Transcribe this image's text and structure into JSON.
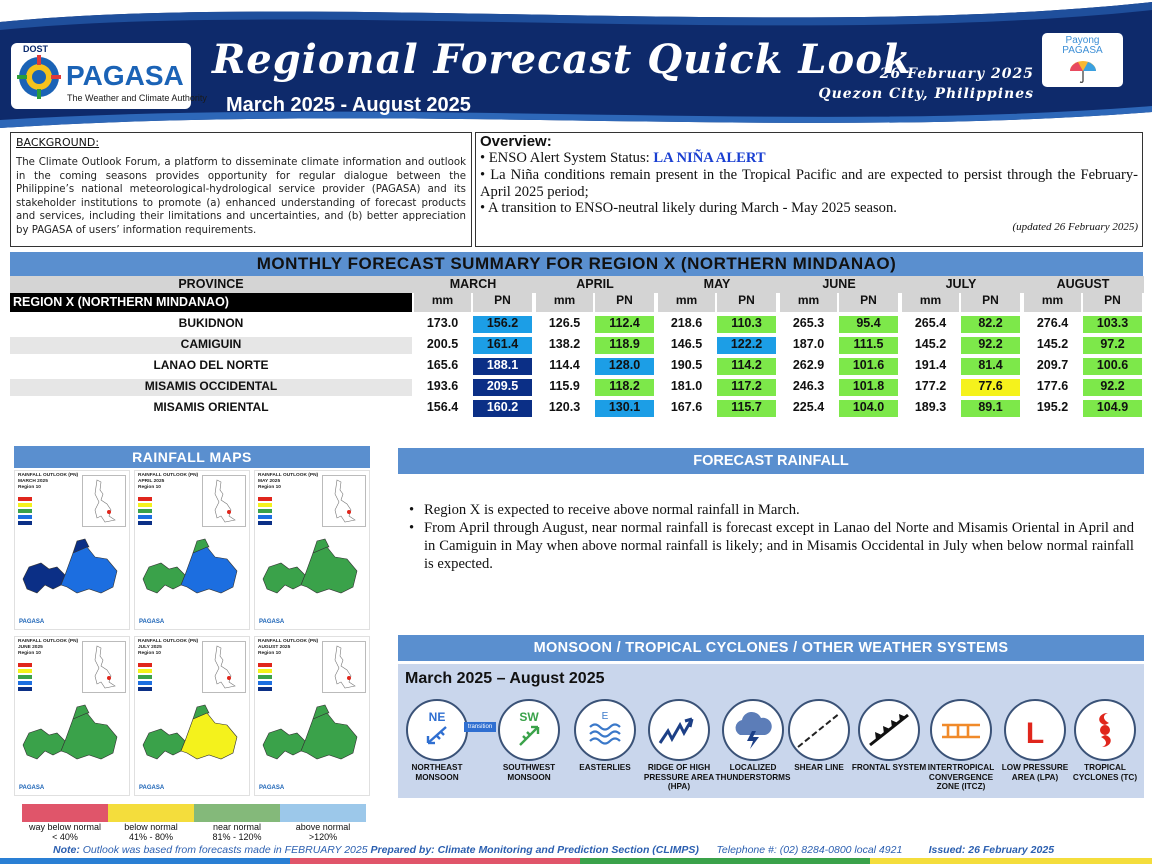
{
  "header": {
    "dost": "DOST",
    "agency": "PAGASA",
    "tagline": "The Weather and Climate Authority",
    "title": "Regional Forecast Quick Look",
    "period": "March 2025 - August 2025",
    "date": "26 February 2025",
    "place": "Quezon City, Philippines",
    "payong_1": "Payong",
    "payong_2": "PAGASA"
  },
  "background": {
    "title": "BACKGROUND:",
    "text": "The Climate Outlook Forum, a platform to disseminate climate information and outlook in the coming seasons provides opportunity for regular dialogue between the Philippine’s national meteorological-hydrological service provider (PAGASA) and its stakeholder institutions to promote (a) enhanced understanding of forecast products and services, including their limitations and uncertainties, and (b) better appreciation by PAGASA of users’ information requirements."
  },
  "overview": {
    "title": "Overview:",
    "item1_prefix": "ENSO Alert System Status: ",
    "item1_alert": "LA NIÑA ALERT",
    "item2": "La Niña conditions remain present in the Tropical Pacific and are expected to persist through the February-April 2025 period;",
    "item3": "A transition to ENSO-neutral likely during March - May 2025 season.",
    "updated": "(updated 26 February 2025)"
  },
  "table": {
    "title": "MONTHLY FORECAST SUMMARY FOR REGION X (NORTHERN MINDANAO)",
    "province_header": "PROVINCE",
    "region_label": "REGION X (NORTHERN MINDANAO)",
    "months": [
      "MARCH",
      "APRIL",
      "MAY",
      "JUNE",
      "JULY",
      "AUGUST"
    ],
    "unit_mm": "mm",
    "unit_pn": "PN",
    "rows": [
      {
        "province": "BUKIDNON",
        "values": [
          [
            "173.0",
            "156.2"
          ],
          [
            "126.5",
            "112.4"
          ],
          [
            "218.6",
            "110.3"
          ],
          [
            "265.3",
            "95.4"
          ],
          [
            "265.4",
            "82.2"
          ],
          [
            "276.4",
            "103.3"
          ]
        ],
        "classes": [
          "ab",
          "nn",
          "nn",
          "nn",
          "nn",
          "nn"
        ]
      },
      {
        "province": "CAMIGUIN",
        "values": [
          [
            "200.5",
            "161.4"
          ],
          [
            "138.2",
            "118.9"
          ],
          [
            "146.5",
            "122.2"
          ],
          [
            "187.0",
            "111.5"
          ],
          [
            "145.2",
            "92.2"
          ],
          [
            "145.2",
            "97.2"
          ]
        ],
        "classes": [
          "ab",
          "nn",
          "ab",
          "nn",
          "nn",
          "nn"
        ]
      },
      {
        "province": "LANAO DEL NORTE",
        "values": [
          [
            "165.6",
            "188.1"
          ],
          [
            "114.4",
            "128.0"
          ],
          [
            "190.5",
            "114.2"
          ],
          [
            "262.9",
            "101.6"
          ],
          [
            "191.4",
            "81.4"
          ],
          [
            "209.7",
            "100.6"
          ]
        ],
        "classes": [
          "wa",
          "ab",
          "nn",
          "nn",
          "nn",
          "nn"
        ]
      },
      {
        "province": "MISAMIS OCCIDENTAL",
        "values": [
          [
            "193.6",
            "209.5"
          ],
          [
            "115.9",
            "118.2"
          ],
          [
            "181.0",
            "117.2"
          ],
          [
            "246.3",
            "101.8"
          ],
          [
            "177.2",
            "77.6"
          ],
          [
            "177.6",
            "92.2"
          ]
        ],
        "classes": [
          "wa",
          "nn",
          "nn",
          "nn",
          "bn",
          "nn"
        ]
      },
      {
        "province": "MISAMIS ORIENTAL",
        "values": [
          [
            "156.4",
            "160.2"
          ],
          [
            "120.3",
            "130.1"
          ],
          [
            "167.6",
            "115.7"
          ],
          [
            "225.4",
            "104.0"
          ],
          [
            "189.3",
            "89.1"
          ],
          [
            "195.2",
            "104.9"
          ]
        ],
        "classes": [
          "wa",
          "ab",
          "nn",
          "nn",
          "nn",
          "nn"
        ]
      }
    ],
    "colors": {
      "wa": "#0b2f86",
      "ab": "#1c9ee6",
      "nn": "#7de84a",
      "bn": "#f5f21c"
    }
  },
  "maps": {
    "title": "RAINFALL MAPS",
    "panel_title": "RAINFALL OUTLOOK (PN)",
    "panel_region": "Region 10",
    "panel_months": [
      "MARCH 2025",
      "APRIL 2025",
      "MAY 2025",
      "JUNE 2025",
      "JULY 2025",
      "AUGUST 2025"
    ],
    "legend": [
      {
        "label_1": "way below normal",
        "label_2": "< 40%",
        "color": "#e0556a"
      },
      {
        "label_1": "below normal",
        "label_2": "41% - 80%",
        "color": "#f4dd3c"
      },
      {
        "label_1": "near normal",
        "label_2": "81% - 120%",
        "color": "#84b97a"
      },
      {
        "label_1": "above normal",
        "label_2": ">120%",
        "color": "#9cc8ea"
      }
    ]
  },
  "forecast": {
    "title": "FORECAST RAINFALL",
    "items": [
      "Region X is expected to receive above normal rainfall in March.",
      "From April through August, near normal rainfall is forecast except in Lanao del Norte and Misamis Oriental in April and in Camiguin in May when above normal rainfall is likely; and in Misamis Occidental in July when below normal rainfall is expected."
    ]
  },
  "systems": {
    "title": "MONSOON / TROPICAL CYCLONES / OTHER WEATHER SYSTEMS",
    "period": "March 2025 – August 2025",
    "transition": "transition",
    "ne": "NE",
    "sw": "SW",
    "e": "E",
    "low_letter": "L",
    "items": [
      "NORTHEAST MONSOON",
      "SOUTHWEST MONSOON",
      "EASTERLIES",
      "RIDGE OF HIGH PRESSURE AREA (HPA)",
      "LOCALIZED THUNDERSTORMS",
      "SHEAR LINE",
      "FRONTAL SYSTEM",
      "INTERTROPICAL CONVERGENCE ZONE (ITCZ)",
      "LOW PRESSURE AREA (LPA)",
      "TROPICAL CYCLONES (TC)"
    ]
  },
  "footer": {
    "note_label": "Note:",
    "note_text": " Outlook was based from forecasts made in FEBRUARY 2025 ",
    "prepared": "Prepared by: Climate Monitoring and Prediction Section (CLIMPS)",
    "telephone": "Telephone #: (02) 8284-0800 local 4921",
    "issued": "Issued: 26 February 2025"
  }
}
